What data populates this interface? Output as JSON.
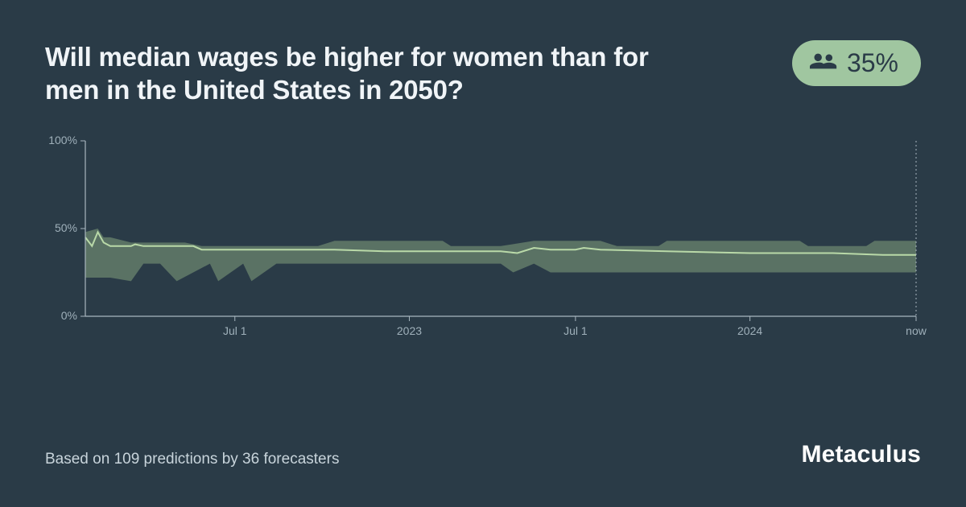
{
  "question": "Will median wages be higher for women than for men in the United States in 2050?",
  "badge": {
    "icon": "people-icon",
    "value": "35%"
  },
  "footer": "Based on 109 predictions by 36 forecasters",
  "brand": "Metaculus",
  "chart": {
    "type": "area",
    "background_color": "#2a3b47",
    "axis_color": "#a8b6bf",
    "tick_label_color": "#9fb0ba",
    "tick_label_fontsize": 14,
    "line_color": "#b9d9a8",
    "line_width": 2,
    "band_color": "#5a7264",
    "band_opacity": 1,
    "now_line_color": "#a8b6bf",
    "ylim": [
      0,
      100
    ],
    "yticks": [
      {
        "v": 0,
        "label": "0%"
      },
      {
        "v": 50,
        "label": "50%"
      },
      {
        "v": 100,
        "label": "100%"
      }
    ],
    "xrange": [
      0,
      1000
    ],
    "xticks": [
      {
        "x": 180,
        "label": "Jul 1"
      },
      {
        "x": 390,
        "label": "2023"
      },
      {
        "x": 590,
        "label": "Jul 1"
      },
      {
        "x": 800,
        "label": "2024"
      },
      {
        "x": 1000,
        "label": "now"
      }
    ],
    "median": [
      [
        0,
        45
      ],
      [
        8,
        40
      ],
      [
        15,
        48
      ],
      [
        22,
        42
      ],
      [
        30,
        40
      ],
      [
        55,
        40
      ],
      [
        60,
        41
      ],
      [
        70,
        40
      ],
      [
        130,
        40
      ],
      [
        140,
        38
      ],
      [
        200,
        38
      ],
      [
        210,
        38
      ],
      [
        300,
        38
      ],
      [
        360,
        37
      ],
      [
        430,
        37
      ],
      [
        500,
        37
      ],
      [
        520,
        36
      ],
      [
        540,
        39
      ],
      [
        560,
        38
      ],
      [
        590,
        38
      ],
      [
        600,
        39
      ],
      [
        620,
        38
      ],
      [
        700,
        37
      ],
      [
        800,
        36
      ],
      [
        900,
        36
      ],
      [
        960,
        35
      ],
      [
        1000,
        35
      ]
    ],
    "band_lower": [
      [
        0,
        22
      ],
      [
        30,
        22
      ],
      [
        55,
        20
      ],
      [
        70,
        30
      ],
      [
        90,
        30
      ],
      [
        110,
        20
      ],
      [
        150,
        30
      ],
      [
        160,
        20
      ],
      [
        190,
        30
      ],
      [
        200,
        20
      ],
      [
        230,
        30
      ],
      [
        360,
        30
      ],
      [
        430,
        30
      ],
      [
        500,
        30
      ],
      [
        515,
        25
      ],
      [
        540,
        30
      ],
      [
        560,
        25
      ],
      [
        620,
        25
      ],
      [
        700,
        25
      ],
      [
        1000,
        25
      ]
    ],
    "band_upper": [
      [
        0,
        48
      ],
      [
        15,
        50
      ],
      [
        22,
        45
      ],
      [
        30,
        45
      ],
      [
        55,
        42
      ],
      [
        90,
        42
      ],
      [
        120,
        42
      ],
      [
        140,
        40
      ],
      [
        280,
        40
      ],
      [
        300,
        43
      ],
      [
        430,
        43
      ],
      [
        440,
        40
      ],
      [
        500,
        40
      ],
      [
        540,
        43
      ],
      [
        620,
        43
      ],
      [
        640,
        40
      ],
      [
        690,
        40
      ],
      [
        700,
        43
      ],
      [
        860,
        43
      ],
      [
        870,
        40
      ],
      [
        940,
        40
      ],
      [
        950,
        43
      ],
      [
        1000,
        43
      ]
    ]
  }
}
